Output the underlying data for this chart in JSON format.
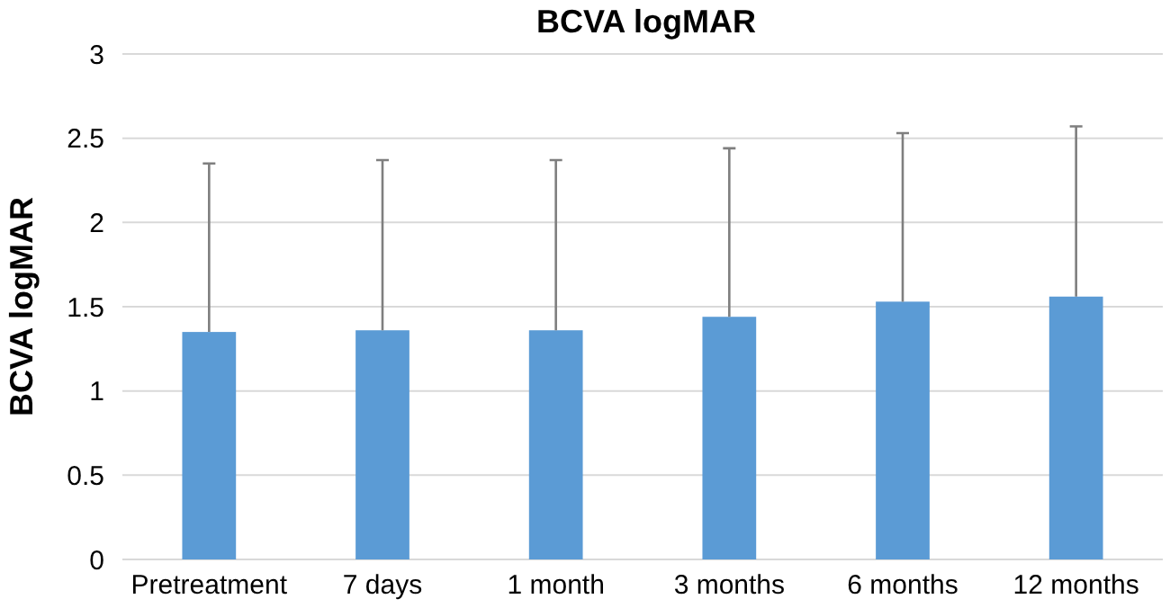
{
  "chart_data": {
    "type": "bar",
    "title": "BCVA logMAR",
    "ylabel": "BCVA logMAR",
    "categories": [
      "Pretreatment",
      "7 days",
      "1 month",
      "3 months",
      "6 months",
      "12 months"
    ],
    "values": [
      1.35,
      1.36,
      1.36,
      1.44,
      1.53,
      1.56
    ],
    "errors": [
      [
        1.35,
        2.35
      ],
      [
        1.36,
        2.37
      ],
      [
        1.36,
        2.37
      ],
      [
        1.44,
        2.44
      ],
      [
        1.53,
        2.53
      ],
      [
        1.56,
        2.57
      ]
    ],
    "color": "#5b9bd5",
    "ylim": [
      0,
      3
    ],
    "yticks": [
      0,
      0.5,
      1,
      1.5,
      2,
      2.5,
      3
    ],
    "grid": "y"
  }
}
